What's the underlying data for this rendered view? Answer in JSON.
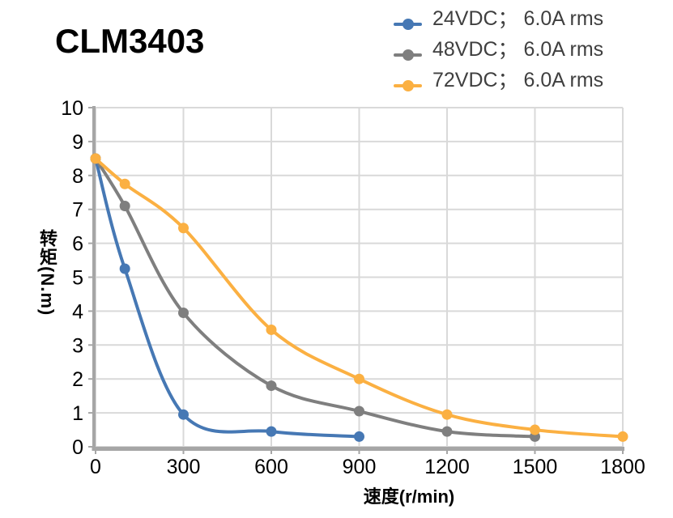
{
  "title": "CLM3403",
  "axes": {
    "x_title": "速度(r/min)",
    "y_title": "转矩(N.m)",
    "x_ticks": [
      0,
      300,
      600,
      900,
      1200,
      1500,
      1800
    ],
    "y_ticks": [
      0,
      1,
      2,
      3,
      4,
      5,
      6,
      7,
      8,
      9,
      10
    ]
  },
  "colors": {
    "grid": "#d9d9d9",
    "axis": "#a6a6a6",
    "tick_label": "#000000",
    "legend_text": "#3f3f3f"
  },
  "chart_data": {
    "type": "line",
    "title": "CLM3403",
    "xlabel": "速度(r/min)",
    "ylabel": "转矩(N.m)",
    "xlim": [
      0,
      1800
    ],
    "ylim": [
      0,
      10
    ],
    "grid": true,
    "smooth": true,
    "legend_position": "top-right",
    "series": [
      {
        "name": "24VDC； 6.0A rms",
        "color": "#4678b4",
        "x": [
          0,
          100,
          300,
          600,
          900
        ],
        "y": [
          8.5,
          5.25,
          0.95,
          0.45,
          0.3
        ]
      },
      {
        "name": "48VDC； 6.0A rms",
        "color": "#7f7f7f",
        "x": [
          0,
          100,
          300,
          600,
          900,
          1200,
          1500
        ],
        "y": [
          8.5,
          7.1,
          3.95,
          1.8,
          1.05,
          0.45,
          0.3
        ]
      },
      {
        "name": "72VDC； 6.0A rms",
        "color": "#fbb042",
        "x": [
          0,
          100,
          300,
          600,
          900,
          1200,
          1500,
          1800
        ],
        "y": [
          8.5,
          7.75,
          6.45,
          3.45,
          2.0,
          0.95,
          0.5,
          0.3
        ]
      }
    ]
  }
}
